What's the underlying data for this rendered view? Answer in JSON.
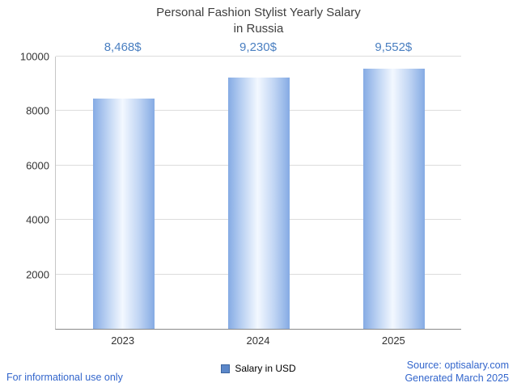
{
  "title": {
    "line1": "Personal Fashion Stylist Yearly Salary",
    "line2": "in Russia"
  },
  "chart_data": {
    "type": "bar",
    "title": "Personal Fashion Stylist Yearly Salary in Russia",
    "categories": [
      "2023",
      "2024",
      "2025"
    ],
    "values": [
      8468,
      9230,
      9552
    ],
    "value_labels": [
      "8,468$",
      "9,230$",
      "9,552$"
    ],
    "series_name": "Salary in USD",
    "xlabel": "",
    "ylabel": "",
    "ylim": [
      0,
      10000
    ],
    "yticks": [
      2000,
      4000,
      6000,
      8000,
      10000
    ],
    "grid": true,
    "legend_position": "bottom"
  },
  "legend": {
    "label": "Salary in USD"
  },
  "footer": {
    "disclaimer": "For informational use only",
    "source": "Source: optisalary.com",
    "generated": "Generated March 2025"
  },
  "colors": {
    "bar_edge": "#85abe4",
    "bar_center": "#f3f8ff",
    "value_label": "#4a7fc1",
    "link_blue": "#3366cc",
    "title_text": "#3f3f3f"
  }
}
